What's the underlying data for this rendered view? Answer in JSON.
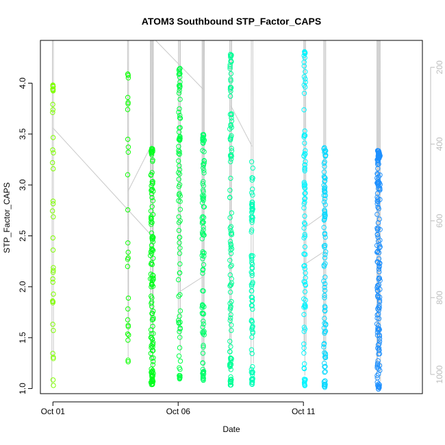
{
  "chart_data": {
    "type": "scatter",
    "title": "ATOM3 Southbound STP_Factor_CAPS",
    "xlabel": "Date",
    "ylabel": "STP_Factor_CAPS",
    "x_axis": {
      "min_day": 0.5,
      "max_day": 15.75,
      "ticks": [
        {
          "label": "Oct 01",
          "day": 1
        },
        {
          "label": "Oct 06",
          "day": 6
        },
        {
          "label": "Oct 11",
          "day": 11
        }
      ]
    },
    "ylim": [
      0.95,
      4.42
    ],
    "y_ticks": [
      "1.0",
      "1.5",
      "2.0",
      "2.5",
      "3.0",
      "3.5",
      "4.0"
    ],
    "y2_axis": {
      "label": "",
      "reversed": true,
      "lim": [
        1050,
        130
      ],
      "ticks": [
        "200",
        "400",
        "600",
        "800",
        "1000"
      ]
    },
    "grid": false,
    "legend": "none",
    "colors": {
      "profile_line": "#c8c8c8",
      "point_start": "#7fff00",
      "point_mid": "#00ff7f",
      "point_end": "#1e90ff"
    },
    "profiles": [
      {
        "date": "Oct 01",
        "day": 1.0,
        "x_spread": 0.04,
        "n": 40,
        "ymin": 1.02,
        "ymax": 4.0,
        "clusters": [
          [
            3.95,
            10
          ],
          [
            1.82,
            2
          ]
        ]
      },
      {
        "date": "Oct 04",
        "day": 4.0,
        "x_spread": 0.04,
        "n": 28,
        "ymin": 1.26,
        "ymax": 4.1,
        "clusters": [
          [
            4.08,
            4
          ],
          [
            3.8,
            2
          ]
        ]
      },
      {
        "date": "Oct 05",
        "day": 4.95,
        "x_spread": 0.12,
        "n": 130,
        "ymin": 1.03,
        "ymax": 3.35,
        "clusters": [
          [
            3.32,
            10
          ],
          [
            1.08,
            10
          ]
        ]
      },
      {
        "date": "Oct 06",
        "day": 6.05,
        "x_spread": 0.08,
        "n": 90,
        "ymin": 1.12,
        "ymax": 4.13,
        "clusters": [
          [
            4.12,
            6
          ],
          [
            3.47,
            4
          ],
          [
            1.13,
            8
          ]
        ]
      },
      {
        "date": "Oct 07",
        "day": 7.0,
        "x_spread": 0.09,
        "n": 100,
        "ymin": 1.11,
        "ymax": 3.47,
        "clusters": [
          [
            3.47,
            5
          ],
          [
            1.12,
            10
          ]
        ]
      },
      {
        "date": "Oct 08",
        "day": 8.1,
        "x_spread": 0.08,
        "n": 110,
        "ymin": 1.03,
        "ymax": 4.3,
        "clusters": [
          [
            4.25,
            6
          ],
          [
            3.96,
            4
          ],
          [
            3.45,
            4
          ],
          [
            1.05,
            8
          ]
        ]
      },
      {
        "date": "Oct 09",
        "day": 8.95,
        "x_spread": 0.06,
        "n": 85,
        "ymin": 1.07,
        "ymax": 3.23,
        "clusters": [
          [
            2.79,
            6
          ],
          [
            1.08,
            6
          ]
        ]
      },
      {
        "date": "Oct 11",
        "day": 11.05,
        "x_spread": 0.07,
        "n": 95,
        "ymin": 1.05,
        "ymax": 4.3,
        "clusters": [
          [
            4.28,
            3
          ],
          [
            3.52,
            4
          ],
          [
            1.05,
            6
          ]
        ]
      },
      {
        "date": "Oct 12",
        "day": 11.85,
        "x_spread": 0.08,
        "n": 100,
        "ymin": 1.02,
        "ymax": 3.37,
        "clusters": [
          [
            2.93,
            6
          ],
          [
            2.72,
            6
          ],
          [
            1.04,
            8
          ]
        ]
      },
      {
        "date": "Oct 14",
        "day": 14.0,
        "x_spread": 0.13,
        "n": 170,
        "ymin": 1.02,
        "ymax": 3.32,
        "clusters": [
          [
            3.3,
            30
          ],
          [
            3.02,
            8
          ],
          [
            1.03,
            8
          ]
        ]
      }
    ],
    "connectors": [
      {
        "x": [
          1.0,
          4.95
        ],
        "y": [
          3.56,
          2.5
        ]
      },
      {
        "x": [
          4.0,
          4.95
        ],
        "y": [
          4.42,
          4.42
        ]
      },
      {
        "x": [
          4.0,
          4.95
        ],
        "y": [
          2.94,
          3.4
        ]
      },
      {
        "x": [
          5.1,
          6.05
        ],
        "y": [
          4.42,
          4.18
        ]
      },
      {
        "x": [
          6.05,
          7.0
        ],
        "y": [
          4.18,
          3.94
        ]
      },
      {
        "x": [
          6.05,
          7.0
        ],
        "y": [
          1.95,
          2.1
        ]
      },
      {
        "x": [
          8.1,
          8.95
        ],
        "y": [
          3.78,
          3.38
        ]
      },
      {
        "x": [
          11.05,
          11.85
        ],
        "y": [
          2.58,
          2.72
        ]
      },
      {
        "x": [
          11.05,
          11.85
        ],
        "y": [
          2.22,
          2.35
        ]
      }
    ]
  }
}
